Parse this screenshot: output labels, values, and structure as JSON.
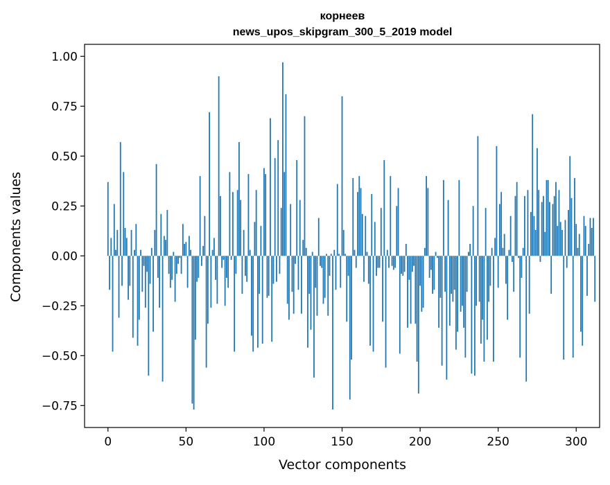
{
  "chart_data": {
    "type": "bar",
    "title": "корнеев",
    "subtitle": "news_upos_skipgram_300_5_2019 model",
    "xlabel": "Vector components",
    "ylabel": "Components values",
    "xlim": [
      -15,
      315
    ],
    "ylim": [
      -0.86,
      1.06
    ],
    "xticks": [
      0,
      50,
      100,
      150,
      200,
      250,
      300
    ],
    "yticks": [
      -0.75,
      -0.5,
      -0.25,
      0.0,
      0.25,
      0.5,
      0.75,
      1.0
    ],
    "xtick_labels": [
      "0",
      "50",
      "100",
      "150",
      "200",
      "250",
      "300"
    ],
    "ytick_labels": [
      "−0.75",
      "−0.50",
      "−0.25",
      "0.00",
      "0.25",
      "0.50",
      "0.75",
      "1.00"
    ],
    "grid": false,
    "bar_color": "#1f77b4",
    "values": [
      0.37,
      -0.17,
      0.09,
      -0.48,
      0.26,
      0.03,
      0.13,
      -0.31,
      0.57,
      -0.15,
      0.42,
      0.14,
      0.09,
      -0.22,
      -0.15,
      0.13,
      -0.41,
      0.03,
      0.16,
      -0.45,
      -0.32,
      0.03,
      -0.18,
      -0.05,
      -0.26,
      -0.08,
      -0.6,
      -0.14,
      0.04,
      -0.38,
      0.13,
      0.46,
      -0.11,
      -0.26,
      0.21,
      -0.63,
      0.1,
      0.08,
      0.23,
      -0.09,
      -0.16,
      -0.12,
      0.02,
      -0.23,
      -0.09,
      -0.04,
      -0.01,
      -0.09,
      0.16,
      0.06,
      0.07,
      -0.16,
      0.1,
      0.03,
      -0.74,
      -0.77,
      -0.42,
      -0.13,
      -0.11,
      0.4,
      -0.05,
      0.05,
      0.2,
      -0.56,
      -0.34,
      0.72,
      -0.26,
      0.03,
      0.09,
      -0.12,
      -0.24,
      0.9,
      0.3,
      -0.06,
      -0.02,
      -0.25,
      -0.11,
      -0.16,
      0.42,
      -0.02,
      0.32,
      -0.48,
      -0.09,
      0.33,
      0.57,
      0.28,
      -0.19,
      0.13,
      -0.1,
      -0.13,
      0.41,
      0.03,
      -0.4,
      -0.48,
      0.17,
      0.33,
      -0.46,
      -0.19,
      0.15,
      -0.44,
      0.44,
      0.41,
      -0.21,
      -0.2,
      0.69,
      -0.43,
      -0.14,
      0.49,
      -0.13,
      0.58,
      -0.09,
      0.24,
      0.97,
      0.42,
      0.81,
      -0.24,
      -0.32,
      0.26,
      -0.18,
      -0.29,
      -0.04,
      0.48,
      -0.17,
      0.28,
      -0.29,
      0.08,
      0.7,
      0.04,
      -0.46,
      -0.19,
      -0.37,
      0.02,
      -0.61,
      -0.16,
      -0.3,
      0.19,
      -0.05,
      -0.06,
      -0.24,
      -0.21,
      0.01,
      -0.3,
      -0.1,
      0.01,
      -0.77,
      0.03,
      -0.17,
      0.36,
      0.01,
      -0.16,
      0.8,
      0.13,
      0.01,
      -0.33,
      -0.1,
      -0.72,
      -0.52,
      0.39,
      0.03,
      -0.06,
      0.32,
      0.4,
      0.34,
      0.21,
      -0.13,
      0.2,
      0.02,
      -0.14,
      -0.45,
      0.31,
      -0.48,
      0.17,
      -0.1,
      -0.06,
      -0.06,
      0.24,
      -0.33,
      0.48,
      -0.56,
      0.03,
      -0.06,
      0.4,
      -0.05,
      -0.07,
      -0.06,
      0.25,
      0.34,
      -0.49,
      -0.09,
      -0.1,
      -0.08,
      0.06,
      -0.36,
      -0.12,
      -0.34,
      -0.08,
      -0.05,
      -0.34,
      -0.53,
      -0.69,
      -0.15,
      -0.28,
      -0.26,
      0.04,
      0.4,
      0.34,
      -0.11,
      -0.07,
      -0.19,
      -0.17,
      0.02,
      -0.01,
      -0.36,
      -0.21,
      -0.55,
      0.38,
      -0.18,
      -0.62,
      0.28,
      -0.35,
      -0.19,
      -0.23,
      -0.17,
      -0.47,
      -0.38,
      0.38,
      -0.28,
      -0.25,
      -0.36,
      -0.51,
      -0.18,
      0.02,
      0.06,
      -0.59,
      0.25,
      -0.6,
      -0.25,
      0.6,
      -0.23,
      -0.44,
      -0.32,
      -0.53,
      0.24,
      -0.42,
      -0.23,
      -0.15,
      0.04,
      -0.53,
      0.09,
      0.55,
      -0.16,
      0.26,
      0.32,
      0.04,
      0.11,
      -0.14,
      -0.32,
      0.03,
      0.2,
      -0.03,
      -0.18,
      0.3,
      0.37,
      -0.01,
      -0.51,
      -0.11,
      0.04,
      0.3,
      -0.63,
      0.33,
      -0.29,
      0.22,
      0.71,
      0.2,
      0.13,
      0.54,
      0.33,
      -0.03,
      0.27,
      0.3,
      0.12,
      0.38,
      0.38,
      0.27,
      -0.19,
      0.26,
      0.3,
      0.37,
      0.15,
      0.33,
      0.17,
      0.13,
      -0.52,
      0.18,
      -0.06,
      0.23,
      0.5,
      0.29,
      -0.51,
      0.39,
      0.16,
      0.04,
      0.11,
      -0.38,
      -0.45,
      0.2,
      0.15,
      -0.2,
      0.06,
      0.19,
      0.14,
      0.19,
      -0.23
    ]
  }
}
